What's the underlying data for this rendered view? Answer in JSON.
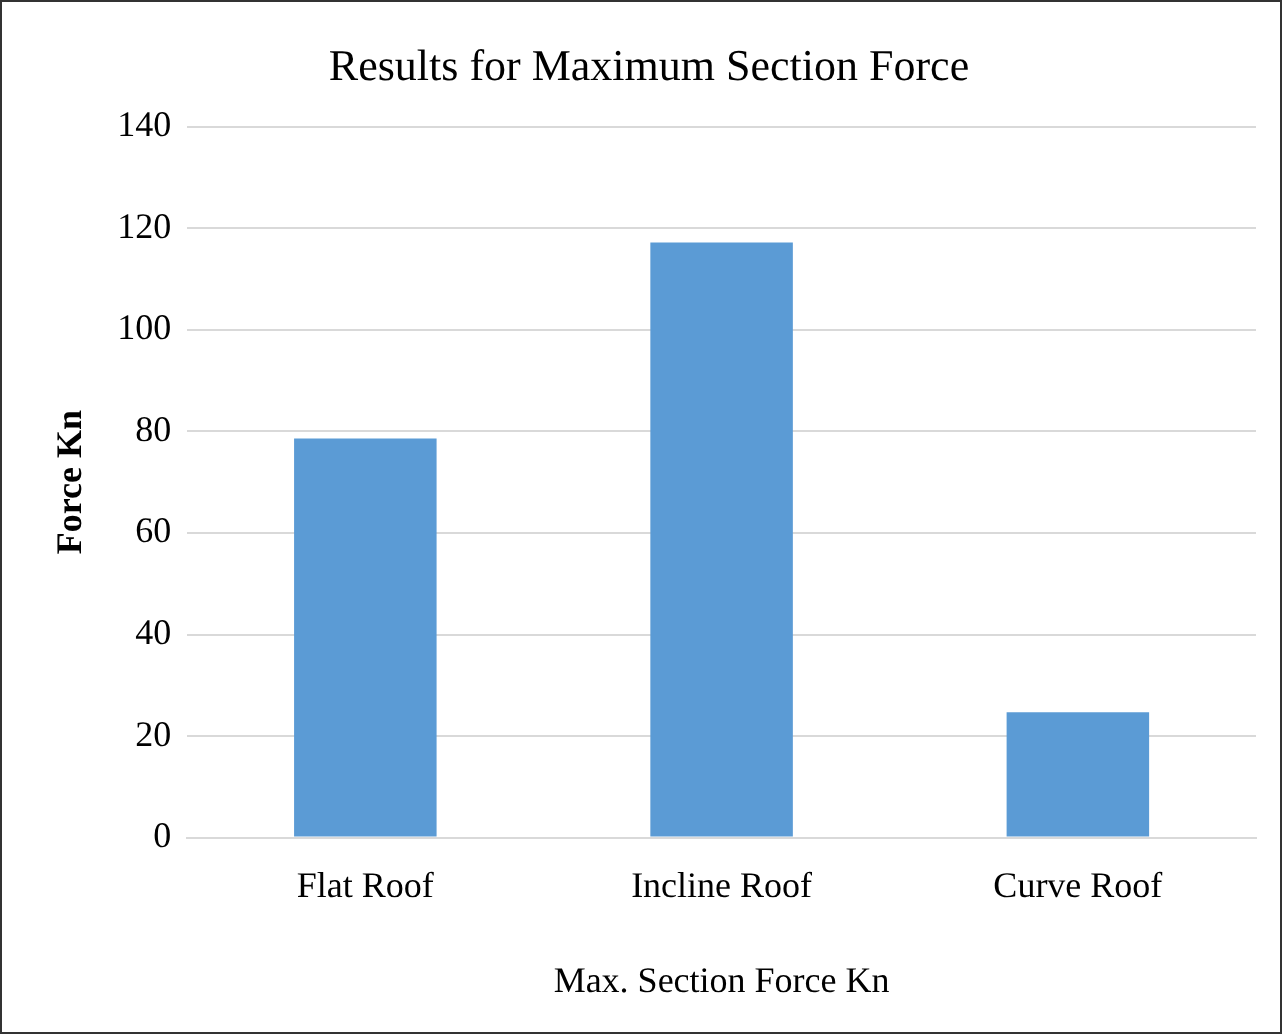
{
  "chart_data": {
    "type": "bar",
    "title": "Results for Maximum Section Force",
    "xlabel": "Max. Section Force Kn",
    "ylabel": "Force Kn",
    "categories": [
      "Flat Roof",
      "Incline Roof",
      "Curve Roof"
    ],
    "values": [
      78.6,
      117.2,
      24.7
    ],
    "color": "#5b9bd5",
    "ylim": [
      0,
      140
    ],
    "yticks": [
      0,
      20,
      40,
      60,
      80,
      100,
      120,
      140
    ],
    "grid": "y"
  }
}
